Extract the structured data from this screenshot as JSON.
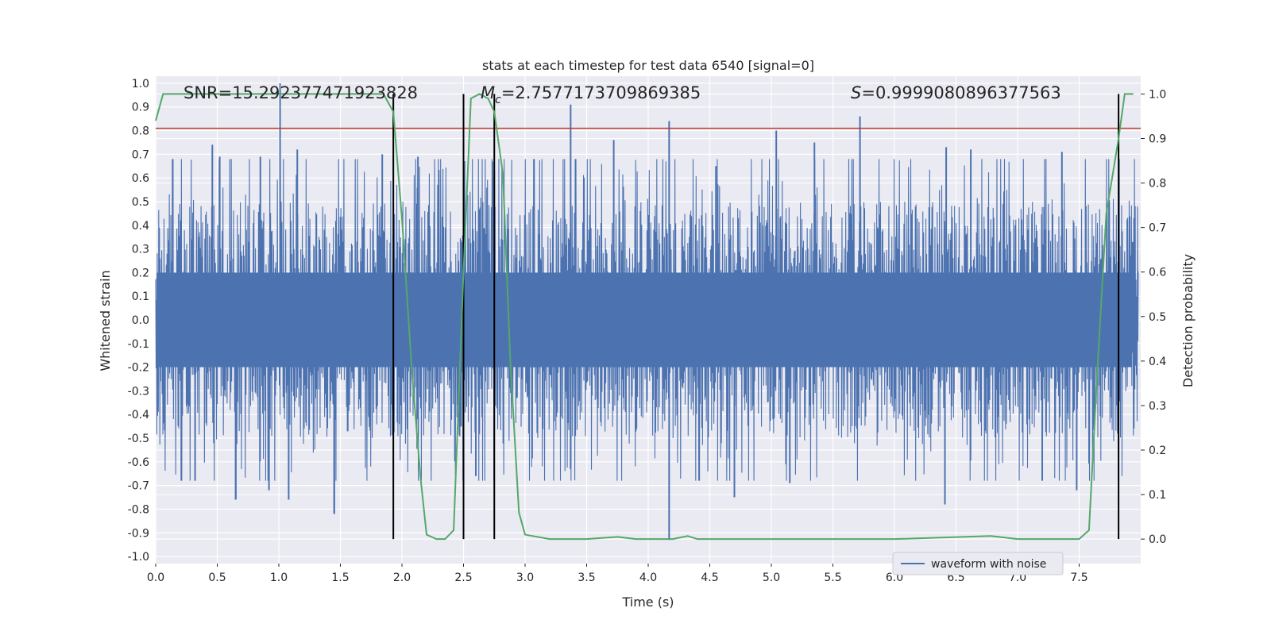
{
  "chart_data": {
    "type": "line",
    "title": "stats at each timestep for test data 6540 [signal=0]",
    "xlabel": "Time (s)",
    "ylabel": "Whitened strain",
    "y2label": "Detection probability",
    "xlim": [
      0.0,
      8.0
    ],
    "ylim": [
      -1.03,
      1.03
    ],
    "y2lim": [
      -0.055,
      1.04
    ],
    "xticks": [
      "0.0",
      "0.5",
      "1.0",
      "1.5",
      "2.0",
      "2.5",
      "3.0",
      "3.5",
      "4.0",
      "4.5",
      "5.0",
      "5.5",
      "6.0",
      "6.5",
      "7.0",
      "7.5"
    ],
    "yticks": [
      "1.0",
      "0.9",
      "0.8",
      "0.7",
      "0.6",
      "0.5",
      "0.4",
      "0.3",
      "0.2",
      "0.1",
      "0.0",
      "-0.1",
      "-0.2",
      "-0.3",
      "-0.4",
      "-0.5",
      "-0.6",
      "-0.7",
      "-0.8",
      "-0.9",
      "-1.0"
    ],
    "y2ticks": [
      "1.0",
      "0.9",
      "0.8",
      "0.7",
      "0.6",
      "0.5",
      "0.4",
      "0.3",
      "0.2",
      "0.1",
      "0.0"
    ],
    "grid": true,
    "legend": {
      "position": "lower-right",
      "entries": [
        "waveform with noise"
      ]
    },
    "annotations": {
      "snr": "SNR=15.292377471923828",
      "mc_symbol": "M",
      "mc_sub": "c",
      "mc_value": "=2.7577173709869385",
      "s_symbol": "S",
      "s_value": "=0.9999080896377563"
    },
    "threshold_line": {
      "y": 0.81,
      "color": "#c0392b"
    },
    "vertical_markers": [
      1.93,
      2.5,
      2.75,
      7.82
    ],
    "series": [
      {
        "name": "waveform with noise",
        "color": "#4c72b0",
        "axis": "left",
        "envelope_note": "dense noise spanning roughly -0.65 to 0.65 with spikes",
        "spikes_x": [
          0.46,
          0.52,
          0.65,
          0.85,
          1.01,
          1.15,
          1.45,
          1.84,
          2.13,
          2.75,
          3.37,
          3.72,
          4.17,
          4.55,
          5.04,
          5.35,
          5.72,
          6.42,
          6.62,
          7.36
        ],
        "spikes_y": [
          0.74,
          0.69,
          -0.76,
          0.69,
          1.0,
          0.72,
          -0.82,
          0.7,
          0.69,
          0.63,
          0.91,
          0.76,
          0.84,
          0.65,
          0.8,
          0.75,
          0.86,
          0.73,
          0.72,
          0.71
        ],
        "negative_spike_x": [
          0.32,
          0.65,
          0.92,
          1.08,
          1.45,
          2.6,
          4.17,
          4.7,
          5.15,
          6.41,
          7.2,
          7.48
        ],
        "negative_spike_y": [
          -0.68,
          -0.76,
          -0.72,
          -0.76,
          -0.82,
          -0.66,
          -0.93,
          -0.75,
          -0.69,
          -0.78,
          -0.68,
          -0.72
        ]
      },
      {
        "name": "",
        "color": "#55a868",
        "axis": "right",
        "x": [
          0.0,
          0.06,
          0.5,
          1.0,
          1.5,
          1.85,
          1.93,
          2.0,
          2.08,
          2.15,
          2.2,
          2.28,
          2.35,
          2.42,
          2.5,
          2.56,
          2.63,
          2.7,
          2.75,
          2.82,
          2.88,
          2.95,
          3.0,
          3.2,
          3.5,
          3.75,
          3.9,
          4.2,
          4.32,
          4.4,
          5.0,
          6.0,
          6.78,
          6.85,
          7.0,
          7.5,
          7.58,
          7.64,
          7.72,
          7.82,
          7.87,
          7.94
        ],
        "y": [
          0.94,
          1.0,
          1.0,
          1.0,
          1.0,
          1.0,
          0.96,
          0.72,
          0.38,
          0.14,
          0.01,
          0.0,
          0.0,
          0.02,
          0.6,
          0.99,
          1.0,
          0.99,
          0.96,
          0.82,
          0.4,
          0.06,
          0.01,
          0.0,
          0.0,
          0.005,
          0.0,
          0.0,
          0.007,
          0.0,
          0.0,
          0.0,
          0.007,
          0.005,
          0.0,
          0.0,
          0.02,
          0.34,
          0.73,
          0.9,
          1.0,
          1.0
        ]
      }
    ]
  }
}
